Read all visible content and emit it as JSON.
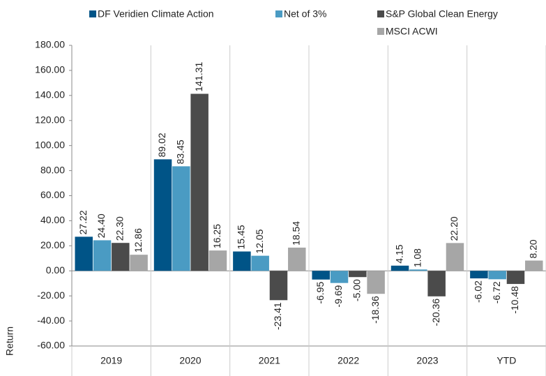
{
  "chart_data": {
    "type": "bar",
    "y_label": "Return",
    "categories": [
      "2019",
      "2020",
      "2021",
      "2022",
      "2023",
      "YTD"
    ],
    "series": [
      {
        "name": "DF Veridien Climate Action",
        "color": "#005487",
        "values": [
          27.22,
          89.02,
          15.45,
          -6.95,
          4.15,
          -6.02
        ],
        "value_labels": [
          "27.22",
          "89.02",
          "15.45",
          "-6.95",
          "4.15",
          "-6.02"
        ]
      },
      {
        "name": "Net of 3%",
        "color": "#4a9bc3",
        "values": [
          24.4,
          83.45,
          12.05,
          -9.69,
          1.08,
          -6.72
        ],
        "value_labels": [
          "24.40",
          "83.45",
          "12.05",
          "-9.69",
          "1.08",
          "-6.72"
        ]
      },
      {
        "name": "S&P Global Clean Energy",
        "color": "#4b4b4b",
        "values": [
          22.3,
          141.31,
          -23.41,
          -5.0,
          -20.36,
          -10.48
        ],
        "value_labels": [
          "22.30",
          "141.31",
          "-23.41",
          "-5.00",
          "-20.36",
          "-10.48"
        ]
      },
      {
        "name": "MSCI ACWI",
        "color": "#a6a6a6",
        "values": [
          12.86,
          16.25,
          18.54,
          -18.36,
          22.2,
          8.2
        ],
        "value_labels": [
          "12.86",
          "16.25",
          "18.54",
          "-18.36",
          "22.20",
          "8.20"
        ]
      }
    ],
    "ylim": [
      -60,
      180
    ],
    "yticks": [
      {
        "value": -60,
        "label": "-60.00"
      },
      {
        "value": -40,
        "label": "-40.00"
      },
      {
        "value": -20,
        "label": "-20.00"
      },
      {
        "value": 0,
        "label": "0.00"
      },
      {
        "value": 20,
        "label": "20.00"
      },
      {
        "value": 40,
        "label": "40.00"
      },
      {
        "value": 60,
        "label": "60.00"
      },
      {
        "value": 80,
        "label": "80.00"
      },
      {
        "value": 100,
        "label": "100.00"
      },
      {
        "value": 120,
        "label": "120.00"
      },
      {
        "value": 140,
        "label": "140.00"
      },
      {
        "value": 160,
        "label": "160.00"
      },
      {
        "value": 180,
        "label": "180.00"
      }
    ],
    "grid": false
  }
}
